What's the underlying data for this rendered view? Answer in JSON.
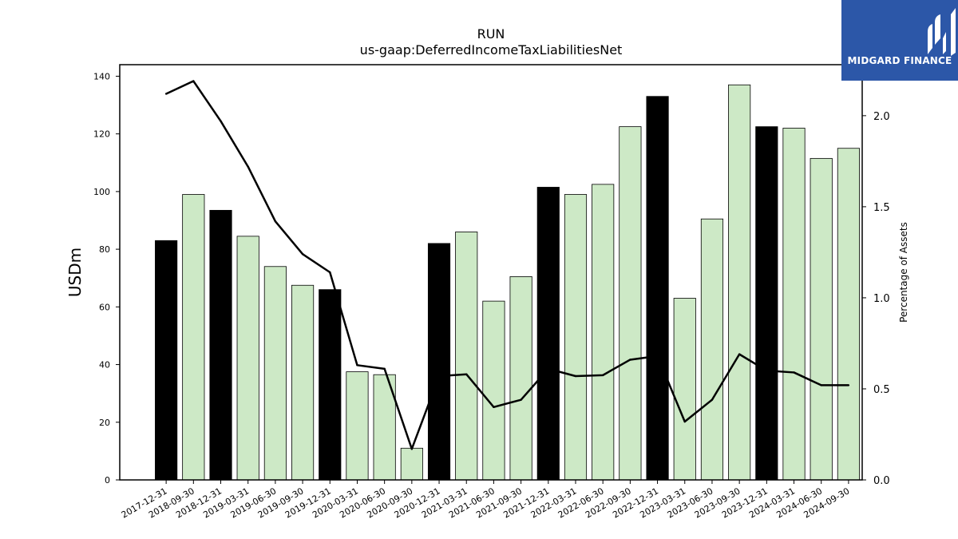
{
  "brand": {
    "name": "MIDGARD FINANCE",
    "logo_icon": "midgard-m-logo-icon",
    "background": "#2c57a8"
  },
  "chart_data": {
    "type": "bar",
    "title": "RUN",
    "subtitle": "us-gaap:DeferredIncomeTaxLiabilitiesNet",
    "ylabel": "USDm",
    "y2label": "Percentage of Assets",
    "ylim": [
      0,
      144
    ],
    "y2lim": [
      0,
      2.28
    ],
    "yticks": [
      0,
      20,
      40,
      60,
      80,
      100,
      120,
      140
    ],
    "y2ticks": [
      0.0,
      0.5,
      1.0,
      1.5,
      2.0
    ],
    "grid": false,
    "colors": {
      "annual": "#000000",
      "quarterly": "#cde9c6",
      "edge": "#000000",
      "line": "#000000"
    },
    "categories": [
      "2017-12-31",
      "2018-09-30",
      "2018-12-31",
      "2019-03-31",
      "2019-06-30",
      "2019-09-30",
      "2019-12-31",
      "2020-03-31",
      "2020-06-30",
      "2020-09-30",
      "2020-12-31",
      "2021-03-31",
      "2021-06-30",
      "2021-09-30",
      "2021-12-31",
      "2022-03-31",
      "2022-06-30",
      "2022-09-30",
      "2022-12-31",
      "2023-03-31",
      "2023-06-30",
      "2023-09-30",
      "2023-12-31",
      "2024-03-31",
      "2024-06-30",
      "2024-09-30"
    ],
    "series": [
      {
        "kind": "bar",
        "axis": "left",
        "values": [
          83,
          99,
          93.5,
          84.5,
          74,
          67.5,
          66,
          37.5,
          36.5,
          11,
          82,
          86,
          62,
          70.5,
          101.5,
          99,
          102.5,
          122.5,
          133,
          63,
          90.5,
          137,
          122.5,
          122,
          111.5,
          115
        ],
        "annual": [
          true,
          false,
          true,
          false,
          false,
          false,
          true,
          false,
          false,
          false,
          true,
          false,
          false,
          false,
          true,
          false,
          false,
          false,
          true,
          false,
          false,
          false,
          true,
          false,
          false,
          false
        ]
      },
      {
        "kind": "line",
        "axis": "right",
        "values": [
          2.12,
          2.19,
          1.97,
          1.72,
          1.42,
          1.24,
          1.14,
          0.63,
          0.61,
          0.17,
          0.57,
          0.58,
          0.4,
          0.44,
          0.61,
          0.57,
          0.575,
          0.66,
          0.68,
          0.32,
          0.44,
          0.69,
          0.6,
          0.59,
          0.52,
          0.52
        ]
      }
    ]
  }
}
